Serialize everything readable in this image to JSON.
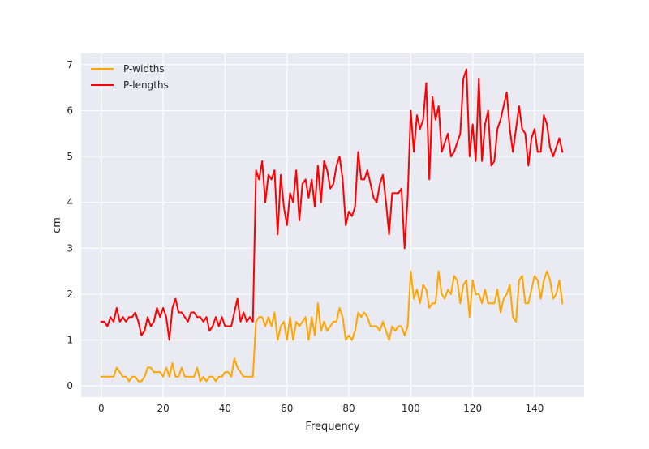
{
  "chart_data": {
    "type": "line",
    "title": "",
    "xlabel": "Frequency",
    "ylabel": "cm",
    "xlim": [
      -6.5,
      156
    ],
    "ylim": [
      -0.245,
      7.245
    ],
    "xticks": [
      0,
      20,
      40,
      60,
      80,
      100,
      120,
      140
    ],
    "yticks": [
      0,
      1,
      2,
      3,
      4,
      5,
      6,
      7
    ],
    "grid": true,
    "legend_position": "top-left",
    "series": [
      {
        "name": "P-widths",
        "color": "#ffa500",
        "values": [
          0.2,
          0.2,
          0.2,
          0.2,
          0.2,
          0.4,
          0.3,
          0.2,
          0.2,
          0.1,
          0.2,
          0.2,
          0.1,
          0.1,
          0.2,
          0.4,
          0.4,
          0.3,
          0.3,
          0.3,
          0.2,
          0.4,
          0.2,
          0.5,
          0.2,
          0.2,
          0.4,
          0.2,
          0.2,
          0.2,
          0.2,
          0.4,
          0.1,
          0.2,
          0.1,
          0.2,
          0.2,
          0.1,
          0.2,
          0.2,
          0.3,
          0.3,
          0.2,
          0.6,
          0.4,
          0.3,
          0.2,
          0.2,
          0.2,
          0.2,
          1.4,
          1.5,
          1.5,
          1.3,
          1.5,
          1.3,
          1.6,
          1.0,
          1.3,
          1.4,
          1.0,
          1.5,
          1.0,
          1.4,
          1.3,
          1.4,
          1.5,
          1.0,
          1.5,
          1.1,
          1.8,
          1.2,
          1.4,
          1.2,
          1.3,
          1.4,
          1.4,
          1.7,
          1.5,
          1.0,
          1.1,
          1.0,
          1.2,
          1.6,
          1.5,
          1.6,
          1.5,
          1.3,
          1.3,
          1.3,
          1.2,
          1.4,
          1.2,
          1.0,
          1.3,
          1.2,
          1.3,
          1.3,
          1.1,
          1.3,
          2.5,
          1.9,
          2.1,
          1.8,
          2.2,
          2.1,
          1.7,
          1.8,
          1.8,
          2.5,
          2.0,
          1.9,
          2.1,
          2.0,
          2.4,
          2.3,
          1.8,
          2.2,
          2.3,
          1.5,
          2.3,
          2.0,
          2.0,
          1.8,
          2.1,
          1.8,
          1.8,
          1.8,
          2.1,
          1.6,
          1.9,
          2.0,
          2.2,
          1.5,
          1.4,
          2.3,
          2.4,
          1.8,
          1.8,
          2.1,
          2.4,
          2.3,
          1.9,
          2.3,
          2.5,
          2.3,
          1.9,
          2.0,
          2.3,
          1.8
        ]
      },
      {
        "name": "P-lengths",
        "color": "#ff0000",
        "values": [
          1.4,
          1.4,
          1.3,
          1.5,
          1.4,
          1.7,
          1.4,
          1.5,
          1.4,
          1.5,
          1.5,
          1.6,
          1.4,
          1.1,
          1.2,
          1.5,
          1.3,
          1.4,
          1.7,
          1.5,
          1.7,
          1.5,
          1.0,
          1.7,
          1.9,
          1.6,
          1.6,
          1.5,
          1.4,
          1.6,
          1.6,
          1.5,
          1.5,
          1.4,
          1.5,
          1.2,
          1.3,
          1.5,
          1.3,
          1.5,
          1.3,
          1.3,
          1.3,
          1.6,
          1.9,
          1.4,
          1.6,
          1.4,
          1.5,
          1.4,
          4.7,
          4.5,
          4.9,
          4.0,
          4.6,
          4.5,
          4.7,
          3.3,
          4.6,
          3.9,
          3.5,
          4.2,
          4.0,
          4.7,
          3.6,
          4.4,
          4.5,
          4.1,
          4.5,
          3.9,
          4.8,
          4.0,
          4.9,
          4.7,
          4.3,
          4.4,
          4.8,
          5.0,
          4.5,
          3.5,
          3.8,
          3.7,
          3.9,
          5.1,
          4.5,
          4.5,
          4.7,
          4.4,
          4.1,
          4.0,
          4.4,
          4.6,
          4.0,
          3.3,
          4.2,
          4.2,
          4.2,
          4.3,
          3.0,
          4.1,
          6.0,
          5.1,
          5.9,
          5.6,
          5.8,
          6.6,
          4.5,
          6.3,
          5.8,
          6.1,
          5.1,
          5.3,
          5.5,
          5.0,
          5.1,
          5.3,
          5.5,
          6.7,
          6.9,
          5.0,
          5.7,
          4.9,
          6.7,
          4.9,
          5.7,
          6.0,
          4.8,
          4.9,
          5.6,
          5.8,
          6.1,
          6.4,
          5.6,
          5.1,
          5.6,
          6.1,
          5.6,
          5.5,
          4.8,
          5.4,
          5.6,
          5.1,
          5.1,
          5.9,
          5.7,
          5.2,
          5.0,
          5.2,
          5.4,
          5.1
        ]
      }
    ]
  }
}
